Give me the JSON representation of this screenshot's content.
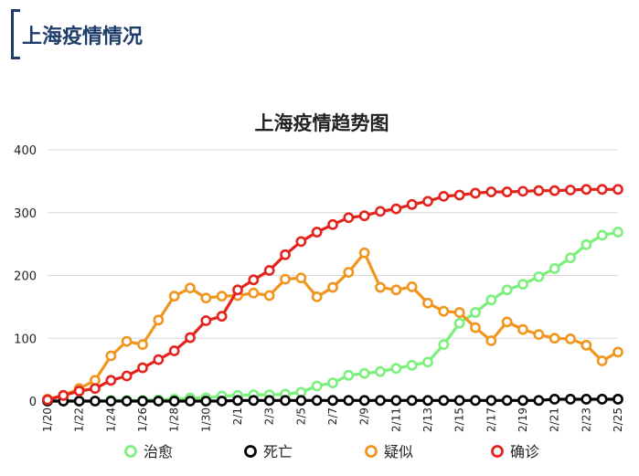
{
  "page": {
    "title": "上海疫情情况"
  },
  "chart_data": {
    "type": "line",
    "title": "上海疫情趋势图",
    "xlabel": "",
    "ylabel": "",
    "ylim": [
      0,
      400
    ],
    "yticks": [
      0,
      100,
      200,
      300,
      400
    ],
    "grid": true,
    "legend_position": "bottom",
    "x": [
      "1/20",
      "1/21",
      "1/22",
      "1/23",
      "1/24",
      "1/25",
      "1/26",
      "1/27",
      "1/28",
      "1/29",
      "1/30",
      "1/31",
      "2/1",
      "2/2",
      "2/3",
      "2/4",
      "2/5",
      "2/6",
      "2/7",
      "2/8",
      "2/9",
      "2/10",
      "2/11",
      "2/12",
      "2/13",
      "2/14",
      "2/15",
      "2/16",
      "2/17",
      "2/18",
      "2/19",
      "2/20",
      "2/21",
      "2/22",
      "2/23",
      "2/24",
      "2/25"
    ],
    "x_tick_labels": [
      "1/20",
      "1/22",
      "1/24",
      "1/26",
      "1/28",
      "1/30",
      "2/1",
      "2/3",
      "2/5",
      "2/7",
      "2/9",
      "2/11",
      "2/13",
      "2/15",
      "2/17",
      "2/19",
      "2/21",
      "2/23",
      "2/25"
    ],
    "series": [
      {
        "name": "治愈",
        "color": "#7cf07c",
        "values": [
          0,
          0,
          0,
          0,
          1,
          1,
          1,
          2,
          3,
          5,
          5,
          8,
          9,
          10,
          10,
          11,
          14,
          24,
          29,
          41,
          44,
          47,
          52,
          57,
          62,
          90,
          124,
          141,
          161,
          177,
          186,
          198,
          211,
          228,
          249,
          264,
          269
        ]
      },
      {
        "name": "死亡",
        "color": "#000000",
        "values": [
          0,
          0,
          0,
          0,
          0,
          0,
          0,
          0,
          0,
          0,
          0,
          0,
          1,
          1,
          1,
          1,
          1,
          1,
          1,
          1,
          1,
          1,
          1,
          1,
          1,
          1,
          1,
          1,
          1,
          1,
          1,
          1,
          3,
          3,
          3,
          3,
          3
        ]
      },
      {
        "name": "疑似",
        "color": "#f0951e",
        "values": [
          3,
          9,
          20,
          33,
          72,
          95,
          90,
          129,
          167,
          180,
          164,
          167,
          168,
          172,
          168,
          194,
          196,
          166,
          181,
          205,
          236,
          181,
          177,
          182,
          156,
          143,
          141,
          117,
          96,
          126,
          114,
          106,
          100,
          99,
          89,
          64,
          78
        ]
      },
      {
        "name": "确诊",
        "color": "#e3231c",
        "values": [
          2,
          9,
          16,
          20,
          33,
          40,
          53,
          66,
          80,
          101,
          128,
          135,
          177,
          193,
          208,
          233,
          254,
          269,
          281,
          292,
          295,
          302,
          306,
          313,
          318,
          326,
          328,
          331,
          333,
          333,
          334,
          335,
          335,
          336,
          337,
          337,
          337
        ]
      }
    ]
  }
}
